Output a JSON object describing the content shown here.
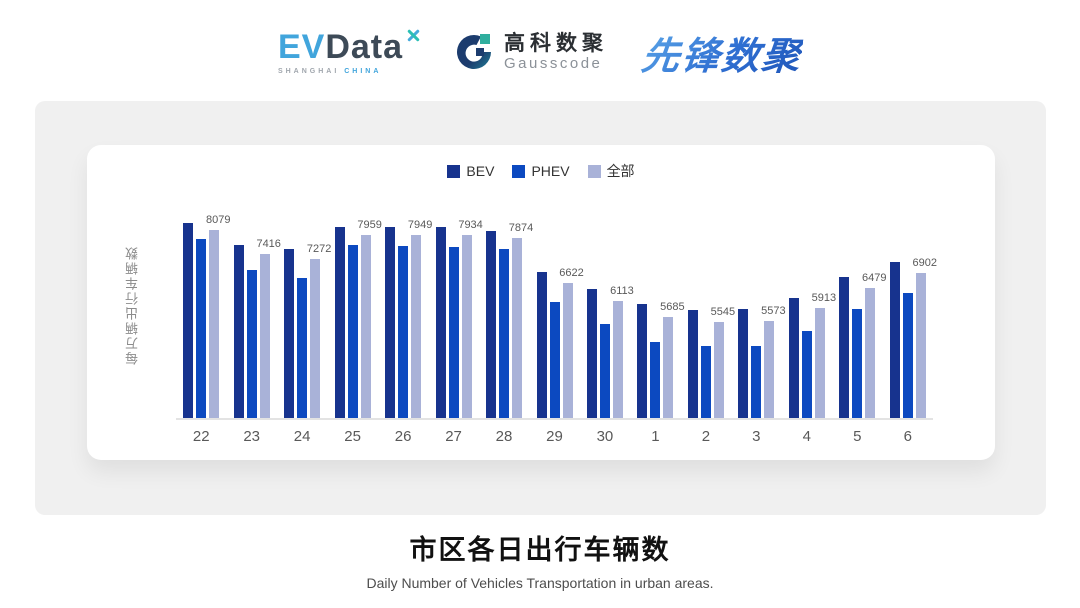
{
  "header": {
    "evdata": {
      "ev": "EV",
      "data": "Data",
      "sub_left": "SHANGHAI",
      "sub_right": "CHINA"
    },
    "gausscode": {
      "cn": "高科数聚",
      "en": "Gausscode"
    },
    "pioneer": {
      "text": "先锋数聚"
    }
  },
  "chart_data": {
    "type": "bar",
    "title": "市区各日出行车辆数",
    "subtitle": "Daily Number of Vehicles Transportation in urban areas.",
    "ylabel": "每万辆出行车辆数",
    "categories": [
      "22",
      "23",
      "24",
      "25",
      "26",
      "27",
      "28",
      "29",
      "30",
      "1",
      "2",
      "3",
      "4",
      "5",
      "6"
    ],
    "series": [
      {
        "name": "BEV",
        "color": "#17338e",
        "values": [
          8270,
          7670,
          7550,
          8180,
          8170,
          8160,
          8060,
          6930,
          6440,
          6020,
          5860,
          5890,
          6200,
          6780,
          7200
        ]
      },
      {
        "name": "PHEV",
        "color": "#0c49c0",
        "values": [
          7850,
          6970,
          6760,
          7670,
          7650,
          7620,
          7550,
          6080,
          5490,
          4990,
          4860,
          4870,
          5290,
          5890,
          6350
        ]
      },
      {
        "name": "全部",
        "color": "#a9b2d8",
        "values": [
          8079,
          7416,
          7272,
          7959,
          7949,
          7934,
          7874,
          6622,
          6113,
          5685,
          5545,
          5573,
          5913,
          6479,
          6902
        ]
      }
    ],
    "value_labels": [
      8079,
      7416,
      7272,
      7959,
      7949,
      7934,
      7874,
      6622,
      6113,
      5685,
      5545,
      5573,
      5913,
      6479,
      6902
    ],
    "value_labels_series": "全部",
    "ylim": [
      2870,
      9250
    ],
    "grid": false,
    "legend_position": "top",
    "colors": {
      "panel_bg": "#f0f0f0",
      "card_bg": "#ffffff",
      "baseline": "#e3e3e3",
      "tick_text": "#595959",
      "value_text": "#595959"
    }
  }
}
